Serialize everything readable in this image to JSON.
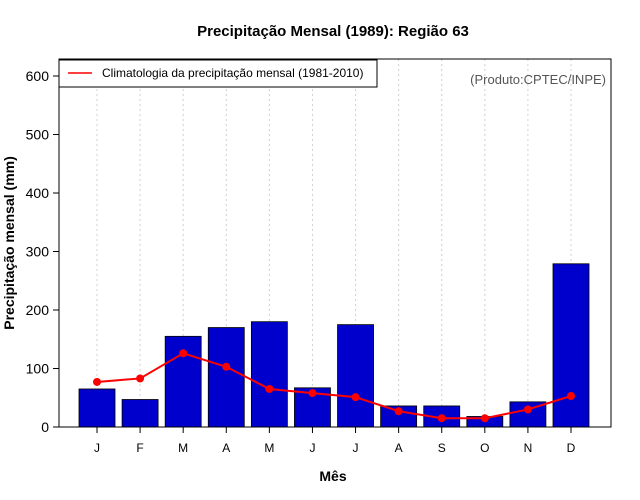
{
  "chart_data": {
    "type": "bar",
    "title": "Precipitação Mensal (1989): Região 63",
    "xlabel": "Mês",
    "ylabel": "Precipitação mensal (mm)",
    "categories": [
      "J",
      "F",
      "M",
      "A",
      "M",
      "J",
      "J",
      "A",
      "S",
      "O",
      "N",
      "D"
    ],
    "ylim": [
      0,
      600
    ],
    "yticks": [
      0,
      100,
      200,
      300,
      400,
      500,
      600
    ],
    "series": [
      {
        "name": "Precipitação mensal (1989)",
        "type": "bar",
        "color": "#0000cc",
        "values": [
          65,
          47,
          155,
          170,
          180,
          67,
          175,
          36,
          36,
          18,
          43,
          279
        ]
      },
      {
        "name": "Climatologia da precipitação mensal (1981-2010)",
        "type": "line",
        "color": "#ff0000",
        "values": [
          77,
          83,
          126,
          103,
          65,
          58,
          51,
          27,
          15,
          15,
          30,
          53
        ]
      }
    ],
    "legend": {
      "position": "top-left",
      "entries": [
        "Climatologia da precipitação mensal (1981-2010)"
      ]
    },
    "annotation": "(Produto:CPTEC/INPE)",
    "grid": "vertical-dotted"
  }
}
